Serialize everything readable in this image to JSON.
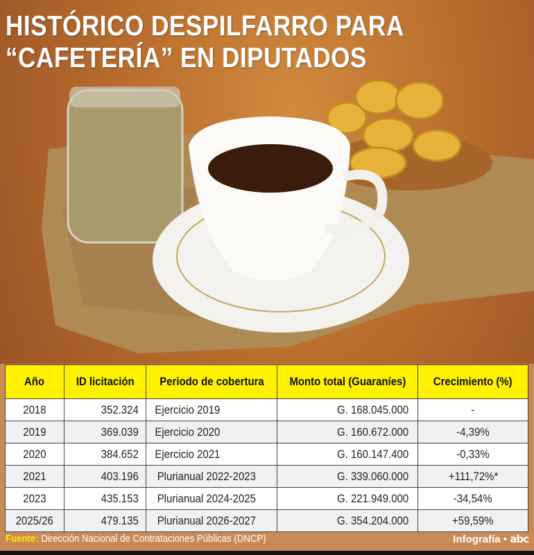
{
  "title": {
    "line1": "HISTÓRICO DESPILFARRO PARA",
    "line2": "“CAFETERÍA” EN DIPUTADOS"
  },
  "table": {
    "headers": [
      "Año",
      "ID licitación",
      "Periodo de cobertura",
      "Monto total (Guaraníes)",
      "Crecimiento (%)"
    ],
    "rows": [
      [
        "2018",
        "352.324",
        "Ejercicio 2019",
        "G. 168.045.000",
        "-"
      ],
      [
        "2019",
        "369.039",
        "Ejercicio 2020",
        "G. 160.672.000",
        "-4,39%"
      ],
      [
        "2020",
        "384.652",
        "Ejercicio 2021",
        "G. 160.147.400",
        "-0,33%"
      ],
      [
        "2021",
        "403.196",
        "Plurianual 2022-2023",
        "G. 339.060.000",
        "+111,72%*"
      ],
      [
        "2023",
        "435.153",
        "Plurianual 2024-2025",
        "G. 221.949.000",
        "-34,54%"
      ],
      [
        "2025/26",
        "479.135",
        "Plurianual 2026-2027",
        "G. 354.204.000",
        "+59,59%"
      ]
    ]
  },
  "footer": {
    "source_label": "Fuente:",
    "source_text": "Dirección Nacional de Contrataciones Públicas (DNCP)",
    "credit": "Infografía •",
    "logo": "abc"
  },
  "colors": {
    "header_bg": "#fff200",
    "source_label": "#ffe600"
  }
}
